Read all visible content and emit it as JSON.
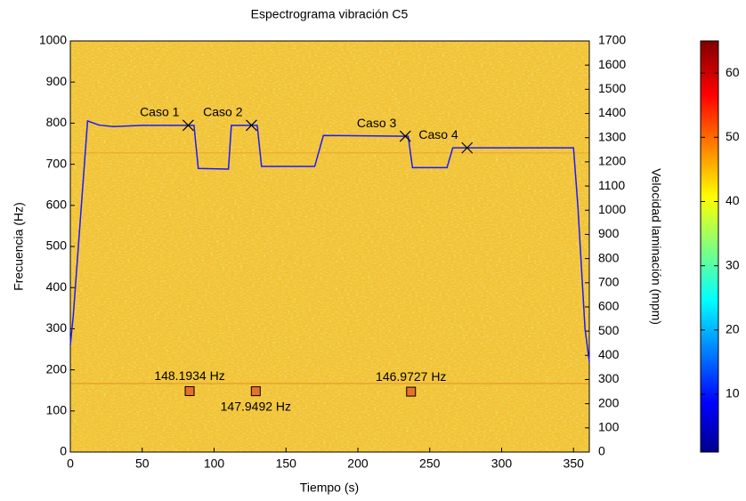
{
  "chart_data": {
    "type": "line",
    "title": "Espectrograma vibración C5",
    "x_label": "Tiempo (s)",
    "y_label": "Frecuencia (Hz)",
    "y2_label": "Velocidad laminación (mpm)",
    "xlim": [
      0,
      361
    ],
    "xticks": [
      0,
      50,
      100,
      150,
      200,
      250,
      300,
      350
    ],
    "ylim": [
      0,
      1000
    ],
    "yticks": [
      0,
      100,
      200,
      300,
      400,
      500,
      600,
      700,
      800,
      900,
      1000
    ],
    "y2lim": [
      0,
      1700
    ],
    "y2ticks": [
      0,
      100,
      200,
      300,
      400,
      500,
      600,
      700,
      800,
      900,
      1000,
      1100,
      1200,
      1300,
      1400,
      1500,
      1600,
      1700
    ],
    "series": [
      {
        "color": "#1a1aff",
        "axis": "y2",
        "x": [
          0,
          2,
          12,
          20,
          30,
          50,
          80,
          86,
          89,
          110,
          112,
          130,
          133,
          170,
          176,
          235,
          238,
          262,
          266,
          350,
          353,
          358,
          361
        ],
        "values": [
          442,
          560,
          1369,
          1352,
          1346,
          1351,
          1351,
          1351,
          1173,
          1170,
          1351,
          1351,
          1181,
          1181,
          1309,
          1306,
          1176,
          1176,
          1258,
          1258,
          1020,
          510,
          374
        ]
      }
    ],
    "cases": {
      "labels": [
        "Caso 1",
        "Caso 2",
        "Caso 3",
        "Caso 4"
      ],
      "x": [
        82,
        126,
        233,
        276
      ],
      "values": [
        1351,
        1351,
        1306,
        1258
      ],
      "axis": "y2"
    },
    "peaks": {
      "x": [
        83,
        129,
        237
      ],
      "values": [
        148.1934,
        147.9492,
        146.9727
      ],
      "value_labels": [
        "148.1934 Hz",
        "147.9492 Hz",
        "146.9727 Hz"
      ]
    },
    "colorbar": {
      "clim": [
        1,
        65
      ],
      "ticks": [
        10,
        20,
        30,
        40,
        50,
        60
      ]
    }
  }
}
